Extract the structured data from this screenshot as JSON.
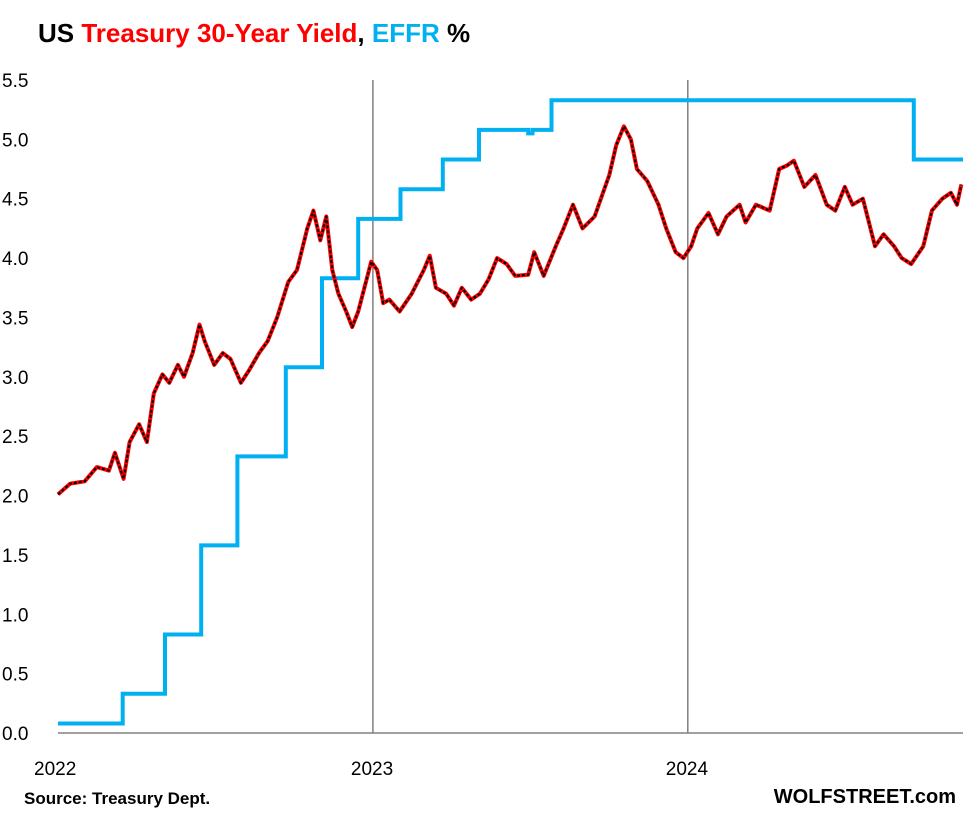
{
  "title": {
    "part1": "US ",
    "part2": "Treasury 30-Year Yield",
    "part3": ", ",
    "part4": "EFFR",
    "part5": " %",
    "colors": {
      "part1": "#000000",
      "part2": "#ff0000",
      "part3": "#000000",
      "part4": "#00b0f0",
      "part5": "#000000"
    }
  },
  "source": "Source: Treasury Dept.",
  "brand": "WOLFSTREET.com",
  "chart_data": {
    "type": "line",
    "grid": "vertical lines at year boundaries only",
    "x_range": [
      "2022-01-01",
      "2024-11-15"
    ],
    "ylim": [
      0,
      5.5
    ],
    "y_ticks": [
      "0.0",
      "0.5",
      "1.0",
      "1.5",
      "2.0",
      "2.5",
      "3.0",
      "3.5",
      "4.0",
      "4.5",
      "5.0",
      "5.5"
    ],
    "x_ticks": [
      {
        "date": "2022-01-01",
        "label": "2022"
      },
      {
        "date": "2023-01-01",
        "label": "2023"
      },
      {
        "date": "2024-01-01",
        "label": "2024"
      }
    ],
    "series": [
      {
        "name": "Treasury 30-Year Yield",
        "color": "#ff0000",
        "overlay_color": "#000000",
        "style": "line",
        "points": [
          [
            "2022-01-01",
            2.01
          ],
          [
            "2022-01-15",
            2.1
          ],
          [
            "2022-02-01",
            2.12
          ],
          [
            "2022-02-15",
            2.24
          ],
          [
            "2022-03-01",
            2.21
          ],
          [
            "2022-03-08",
            2.36
          ],
          [
            "2022-03-18",
            2.14
          ],
          [
            "2022-03-25",
            2.45
          ],
          [
            "2022-04-05",
            2.6
          ],
          [
            "2022-04-14",
            2.45
          ],
          [
            "2022-04-22",
            2.86
          ],
          [
            "2022-05-02",
            3.02
          ],
          [
            "2022-05-10",
            2.95
          ],
          [
            "2022-05-20",
            3.1
          ],
          [
            "2022-05-27",
            3.0
          ],
          [
            "2022-06-06",
            3.2
          ],
          [
            "2022-06-14",
            3.44
          ],
          [
            "2022-06-20",
            3.3
          ],
          [
            "2022-07-01",
            3.1
          ],
          [
            "2022-07-11",
            3.2
          ],
          [
            "2022-07-20",
            3.15
          ],
          [
            "2022-08-01",
            2.95
          ],
          [
            "2022-08-10",
            3.05
          ],
          [
            "2022-08-22",
            3.2
          ],
          [
            "2022-09-01",
            3.3
          ],
          [
            "2022-09-12",
            3.5
          ],
          [
            "2022-09-25",
            3.8
          ],
          [
            "2022-10-05",
            3.9
          ],
          [
            "2022-10-17",
            4.25
          ],
          [
            "2022-10-24",
            4.4
          ],
          [
            "2022-11-01",
            4.15
          ],
          [
            "2022-11-08",
            4.35
          ],
          [
            "2022-11-15",
            3.9
          ],
          [
            "2022-11-22",
            3.7
          ],
          [
            "2022-12-01",
            3.55
          ],
          [
            "2022-12-08",
            3.42
          ],
          [
            "2022-12-15",
            3.55
          ],
          [
            "2022-12-30",
            3.97
          ],
          [
            "2023-01-06",
            3.9
          ],
          [
            "2023-01-13",
            3.62
          ],
          [
            "2023-01-20",
            3.65
          ],
          [
            "2023-02-01",
            3.55
          ],
          [
            "2023-02-15",
            3.7
          ],
          [
            "2023-03-01",
            3.9
          ],
          [
            "2023-03-08",
            4.02
          ],
          [
            "2023-03-15",
            3.75
          ],
          [
            "2023-03-27",
            3.7
          ],
          [
            "2023-04-05",
            3.6
          ],
          [
            "2023-04-14",
            3.75
          ],
          [
            "2023-04-25",
            3.65
          ],
          [
            "2023-05-05",
            3.7
          ],
          [
            "2023-05-15",
            3.82
          ],
          [
            "2023-05-25",
            4.0
          ],
          [
            "2023-06-05",
            3.95
          ],
          [
            "2023-06-15",
            3.85
          ],
          [
            "2023-06-30",
            3.86
          ],
          [
            "2023-07-07",
            4.05
          ],
          [
            "2023-07-18",
            3.85
          ],
          [
            "2023-08-01",
            4.1
          ],
          [
            "2023-08-10",
            4.25
          ],
          [
            "2023-08-21",
            4.45
          ],
          [
            "2023-09-01",
            4.25
          ],
          [
            "2023-09-15",
            4.35
          ],
          [
            "2023-10-02",
            4.7
          ],
          [
            "2023-10-10",
            4.95
          ],
          [
            "2023-10-19",
            5.11
          ],
          [
            "2023-10-27",
            5.0
          ],
          [
            "2023-11-03",
            4.75
          ],
          [
            "2023-11-15",
            4.65
          ],
          [
            "2023-11-28",
            4.45
          ],
          [
            "2023-12-07",
            4.25
          ],
          [
            "2023-12-18",
            4.05
          ],
          [
            "2023-12-27",
            4.0
          ],
          [
            "2024-01-05",
            4.1
          ],
          [
            "2024-01-12",
            4.25
          ],
          [
            "2024-01-25",
            4.38
          ],
          [
            "2024-02-05",
            4.2
          ],
          [
            "2024-02-15",
            4.35
          ],
          [
            "2024-03-01",
            4.45
          ],
          [
            "2024-03-08",
            4.3
          ],
          [
            "2024-03-20",
            4.45
          ],
          [
            "2024-04-05",
            4.4
          ],
          [
            "2024-04-16",
            4.75
          ],
          [
            "2024-04-25",
            4.78
          ],
          [
            "2024-05-03",
            4.82
          ],
          [
            "2024-05-15",
            4.6
          ],
          [
            "2024-05-28",
            4.7
          ],
          [
            "2024-06-10",
            4.45
          ],
          [
            "2024-06-20",
            4.4
          ],
          [
            "2024-07-01",
            4.6
          ],
          [
            "2024-07-10",
            4.45
          ],
          [
            "2024-07-22",
            4.5
          ],
          [
            "2024-08-05",
            4.1
          ],
          [
            "2024-08-15",
            4.2
          ],
          [
            "2024-08-27",
            4.1
          ],
          [
            "2024-09-05",
            4.0
          ],
          [
            "2024-09-16",
            3.95
          ],
          [
            "2024-09-30",
            4.1
          ],
          [
            "2024-10-10",
            4.4
          ],
          [
            "2024-10-22",
            4.5
          ],
          [
            "2024-11-01",
            4.55
          ],
          [
            "2024-11-08",
            4.45
          ],
          [
            "2024-11-13",
            4.62
          ]
        ]
      },
      {
        "name": "EFFR",
        "color": "#00b0f0",
        "style": "step",
        "points": [
          [
            "2022-01-01",
            0.08
          ],
          [
            "2022-03-17",
            0.33
          ],
          [
            "2022-05-05",
            0.83
          ],
          [
            "2022-06-16",
            1.58
          ],
          [
            "2022-07-28",
            2.33
          ],
          [
            "2022-09-22",
            3.08
          ],
          [
            "2022-11-03",
            3.83
          ],
          [
            "2022-12-15",
            4.33
          ],
          [
            "2023-02-02",
            4.58
          ],
          [
            "2023-03-23",
            4.83
          ],
          [
            "2023-05-04",
            5.08
          ],
          [
            "2023-06-30",
            5.05
          ],
          [
            "2023-07-05",
            5.08
          ],
          [
            "2023-07-27",
            5.33
          ],
          [
            "2024-09-19",
            4.83
          ],
          [
            "2024-11-15",
            4.83
          ]
        ]
      }
    ]
  }
}
